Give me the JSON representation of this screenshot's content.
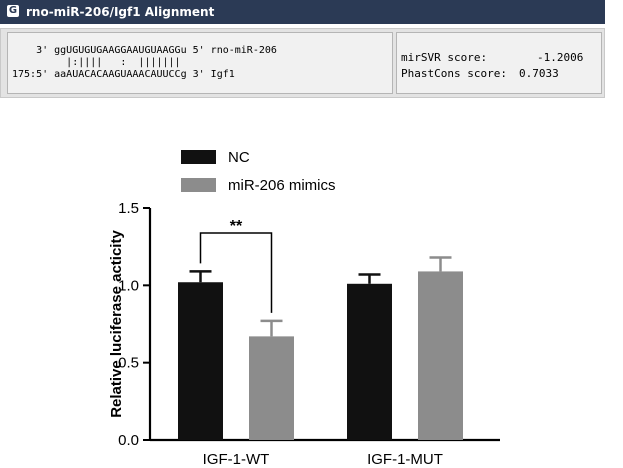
{
  "window": {
    "title": "rno-miR-206/Igf1 Alignment",
    "icon": "app-icon"
  },
  "alignment": {
    "mirna_line": "    3' ggUGUGUGAAGGAAUGUAAGGu 5' rno-miR-206",
    "match_line": "         |:||||   :  |||||||",
    "target_line": "175:5' aaAUACACAAGUAAACAUUCCg 3' Igf1"
  },
  "scores": {
    "mirsvr_label": "mirSVR score:",
    "mirsvr_value": "-1.2006",
    "phastcons_label": "PhastCons score:",
    "phastcons_value": "0.7033"
  },
  "chart_data": {
    "type": "bar",
    "categories": [
      "IGF-1-WT",
      "IGF-1-MUT"
    ],
    "series": [
      {
        "name": "NC",
        "values": [
          1.02,
          1.01
        ],
        "errors": [
          0.07,
          0.06
        ],
        "color": "#111111"
      },
      {
        "name": "miR-206 mimics",
        "values": [
          0.67,
          1.09
        ],
        "errors": [
          0.1,
          0.09
        ],
        "color": "#8c8c8c"
      }
    ],
    "ylabel": "Relative luciferase acticity",
    "xlabel": "",
    "ylim": [
      0,
      1.5
    ],
    "yticks": [
      "0.0",
      "0.5",
      "1.0",
      "1.5"
    ],
    "ytick_values": [
      0,
      0.5,
      1.0,
      1.5
    ],
    "legend_position": "top",
    "grid": false,
    "annotations": [
      {
        "text": "**",
        "category": "IGF-1-WT",
        "between": [
          "NC",
          "miR-206 mimics"
        ]
      }
    ]
  }
}
